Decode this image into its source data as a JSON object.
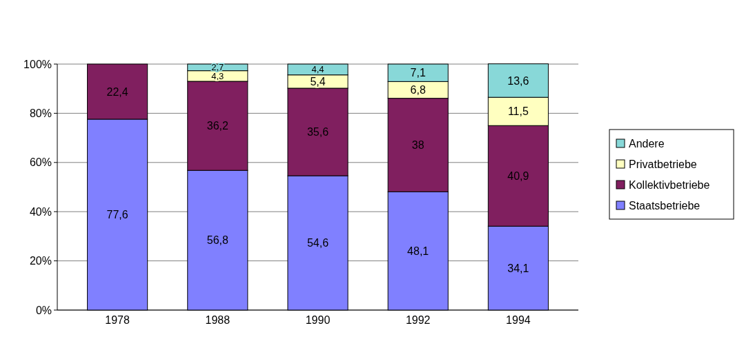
{
  "chart_data": {
    "type": "bar",
    "stacked": true,
    "categories": [
      "1978",
      "1988",
      "1990",
      "1992",
      "1994"
    ],
    "series": [
      {
        "name": "Staatsbetriebe",
        "color": "#8080ff",
        "values": [
          77.6,
          56.8,
          54.6,
          48.1,
          34.1
        ],
        "value_labels": [
          "77,6",
          "56,8",
          "54,6",
          "48,1",
          "34,1"
        ]
      },
      {
        "name": "Kollektivbetriebe",
        "color": "#801f5f",
        "values": [
          22.4,
          36.2,
          35.6,
          38,
          40.9
        ],
        "value_labels": [
          "22,4",
          "36,2",
          "35,6",
          "38",
          "40,9"
        ]
      },
      {
        "name": "Privatbetriebe",
        "color": "#ffffc0",
        "values": [
          null,
          4.3,
          5.4,
          6.8,
          11.5
        ],
        "value_labels": [
          null,
          "4,3",
          "5,4",
          "6,8",
          "11,5"
        ]
      },
      {
        "name": "Andere",
        "color": "#88d8d8",
        "values": [
          null,
          2.7,
          4.4,
          7.1,
          13.6
        ],
        "value_labels": [
          null,
          "2,7",
          "4,4",
          "7,1",
          "13,6"
        ]
      }
    ],
    "ylim": [
      0,
      100
    ],
    "yticks": [
      {
        "value": 0,
        "label": "0%"
      },
      {
        "value": 20,
        "label": "20%"
      },
      {
        "value": 40,
        "label": "40%"
      },
      {
        "value": 60,
        "label": "60%"
      },
      {
        "value": 80,
        "label": "80%"
      },
      {
        "value": 100,
        "label": "100%"
      }
    ],
    "grid": "y",
    "legend": "right"
  }
}
